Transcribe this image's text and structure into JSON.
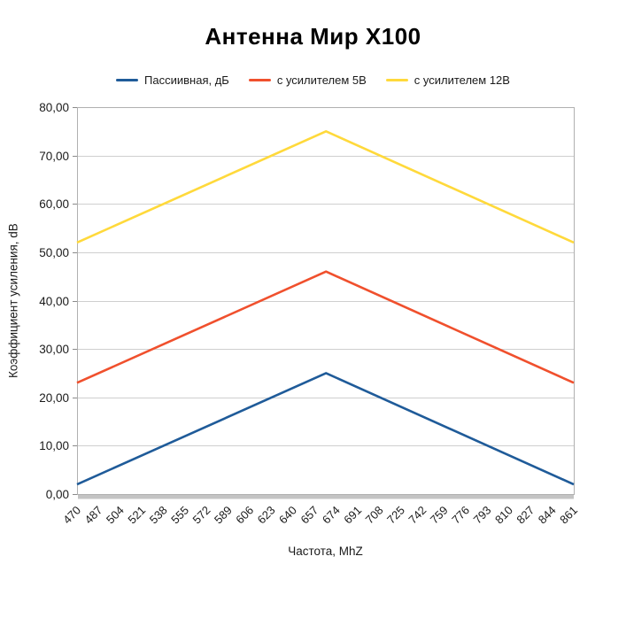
{
  "page": {
    "background": "#ffffff"
  },
  "chart_data": {
    "type": "line",
    "title": "Антенна Мир X100",
    "xlabel": "Частота, MhZ",
    "ylabel": "Коэффициент усиления, dB",
    "xlim": [
      470,
      861
    ],
    "ylim": [
      0,
      80
    ],
    "x_major_interval": 17,
    "x_tick_labels": [
      "470",
      "487",
      "504",
      "521",
      "538",
      "555",
      "572",
      "589",
      "606",
      "623",
      "640",
      "657",
      "674",
      "691",
      "708",
      "725",
      "742",
      "759",
      "776",
      "793",
      "810",
      "827",
      "844",
      "861"
    ],
    "y_tick_labels": [
      "0,00",
      "10,00",
      "20,00",
      "30,00",
      "40,00",
      "50,00",
      "60,00",
      "70,00",
      "80,00"
    ],
    "grid": "horizontal",
    "legend_position": "top",
    "series": [
      {
        "name": "Пассиивная, дБ",
        "color": "#1F5B99",
        "points": [
          [
            470,
            2
          ],
          [
            666,
            25
          ],
          [
            861,
            2
          ]
        ]
      },
      {
        "name": "с усилителем 5В",
        "color": "#F0502D",
        "points": [
          [
            470,
            23
          ],
          [
            666,
            46
          ],
          [
            861,
            23
          ]
        ]
      },
      {
        "name": "с усилителем 12В",
        "color": "#FFD93B",
        "points": [
          [
            470,
            52
          ],
          [
            666,
            75
          ],
          [
            861,
            52
          ]
        ]
      }
    ],
    "grid_color": "#cfcfcf",
    "axis_color": "#b0b0b0",
    "tick_color": "#8a8a8a",
    "text_color": "#1a1a1a"
  }
}
